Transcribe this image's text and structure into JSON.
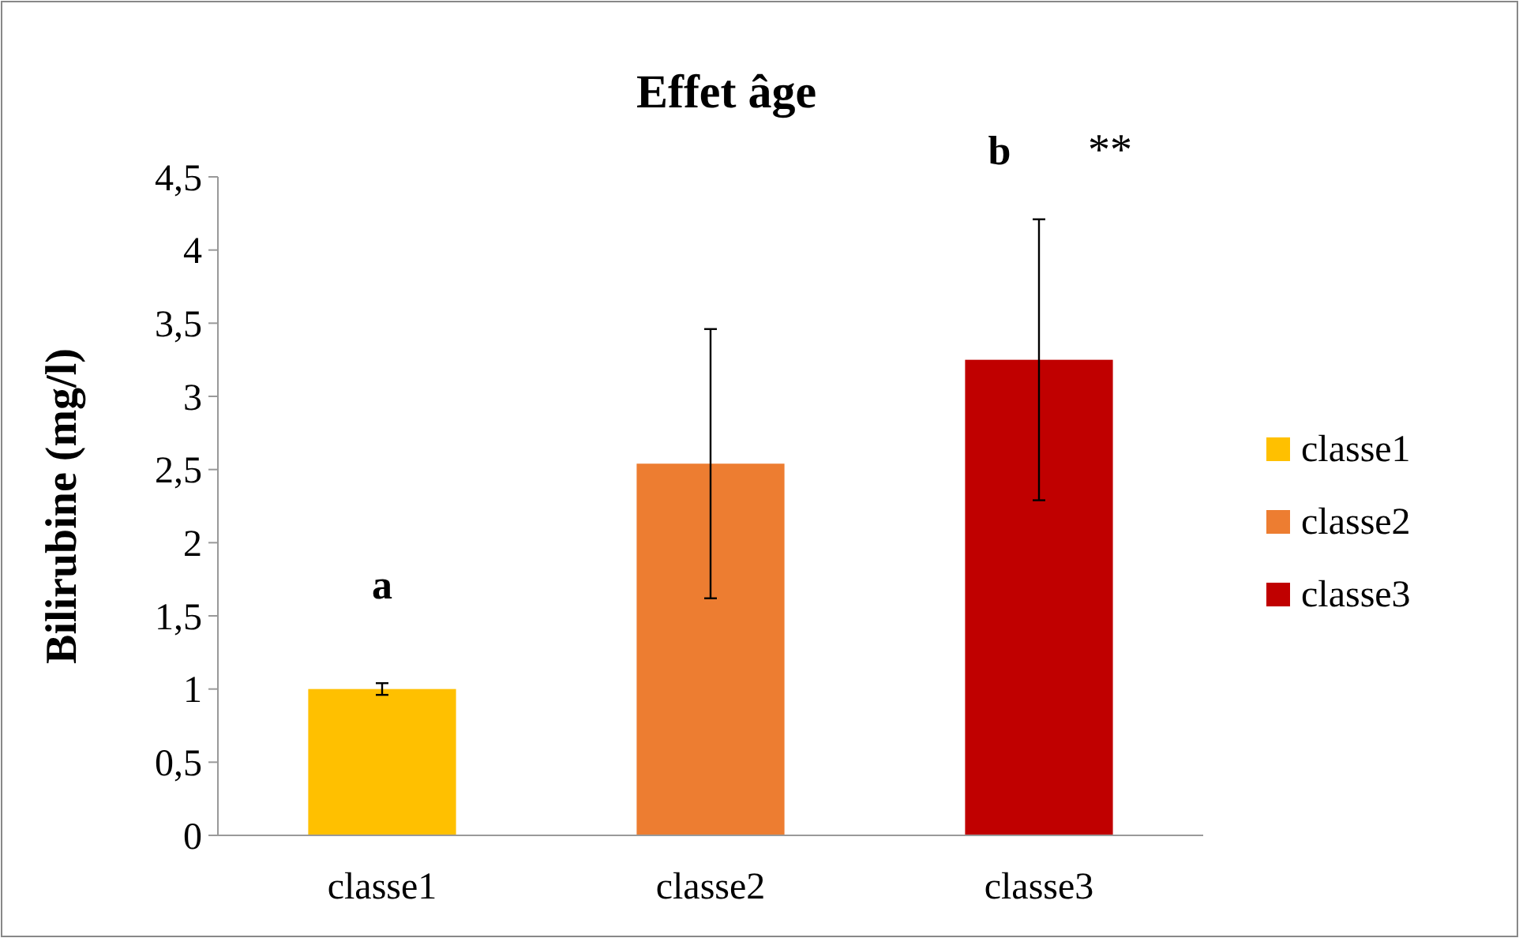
{
  "chart_data": {
    "type": "bar",
    "title": "Effet âge",
    "ylabel": "Bilirubine (mg/l)",
    "categories": [
      "classe1",
      "classe2",
      "classe3"
    ],
    "series": [
      {
        "name": "classe1",
        "color": "#ffc000",
        "values": [
          1.0,
          null,
          null
        ],
        "errors": [
          0.04,
          null,
          null
        ]
      },
      {
        "name": "classe2",
        "color": "#ed7d31",
        "values": [
          null,
          2.54,
          null
        ],
        "errors": [
          null,
          0.92,
          null
        ]
      },
      {
        "name": "classe3",
        "color": "#c00000",
        "values": [
          null,
          null,
          3.25
        ],
        "errors": [
          null,
          null,
          0.96
        ]
      }
    ],
    "ylim": [
      0,
      4.5
    ],
    "yticks": [
      0,
      {
        "value": 0.5,
        "label": "0,5"
      },
      1,
      {
        "value": 1.5,
        "label": "1,5"
      },
      2,
      {
        "value": 2.5,
        "label": "2,5"
      },
      3,
      {
        "value": 3.5,
        "label": "3,5"
      },
      4,
      {
        "value": 4.5,
        "label": "4,5"
      }
    ],
    "annotations": [
      "a",
      "b",
      "**"
    ],
    "legend": "right"
  }
}
